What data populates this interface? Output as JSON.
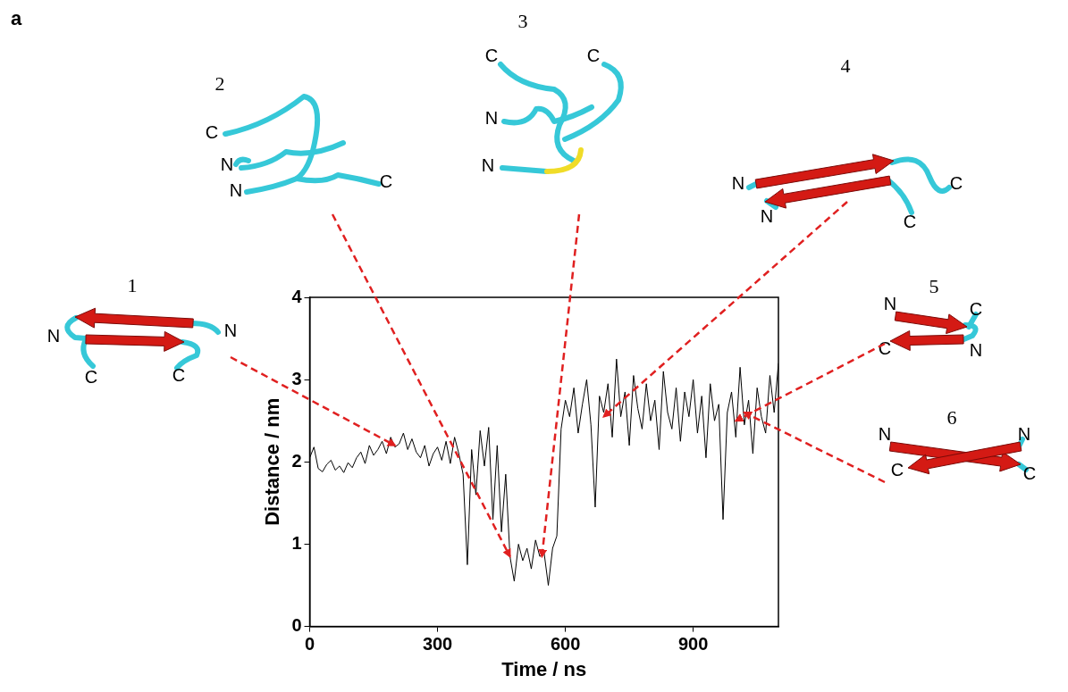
{
  "panel_label": "a",
  "chart_data": {
    "type": "line",
    "x_label": "Time / ns",
    "y_label": "Distance / nm",
    "x": [
      0,
      10,
      20,
      30,
      40,
      50,
      60,
      70,
      80,
      90,
      100,
      110,
      120,
      130,
      140,
      150,
      160,
      170,
      180,
      190,
      200,
      210,
      220,
      230,
      240,
      250,
      260,
      270,
      280,
      290,
      300,
      310,
      320,
      330,
      340,
      350,
      360,
      370,
      380,
      390,
      400,
      410,
      420,
      430,
      440,
      450,
      460,
      470,
      480,
      490,
      500,
      510,
      520,
      530,
      540,
      550,
      560,
      570,
      580,
      590,
      600,
      610,
      620,
      630,
      640,
      650,
      660,
      670,
      680,
      690,
      700,
      710,
      720,
      730,
      740,
      750,
      760,
      770,
      780,
      790,
      800,
      810,
      820,
      830,
      840,
      850,
      860,
      870,
      880,
      890,
      900,
      910,
      920,
      930,
      940,
      950,
      960,
      970,
      980,
      990,
      1000,
      1010,
      1020,
      1030,
      1040,
      1050,
      1060,
      1070,
      1080,
      1090,
      1100
    ],
    "values": [
      2.05,
      2.18,
      1.92,
      1.88,
      1.97,
      2.02,
      1.9,
      1.95,
      1.87,
      1.99,
      1.93,
      2.05,
      2.12,
      1.98,
      2.2,
      2.08,
      2.15,
      2.25,
      2.1,
      2.3,
      2.18,
      2.22,
      2.35,
      2.15,
      2.28,
      2.12,
      2.05,
      2.2,
      1.95,
      2.1,
      2.18,
      2.02,
      2.25,
      1.98,
      2.3,
      2.1,
      1.85,
      0.75,
      2.15,
      1.6,
      2.38,
      1.95,
      2.42,
      1.3,
      2.2,
      1.15,
      1.85,
      0.85,
      0.55,
      1.0,
      0.8,
      0.95,
      0.7,
      1.05,
      0.85,
      0.9,
      0.5,
      0.95,
      1.1,
      2.4,
      2.75,
      2.55,
      2.9,
      2.35,
      2.7,
      3.0,
      2.45,
      1.45,
      2.8,
      2.6,
      2.95,
      2.3,
      3.25,
      2.55,
      2.85,
      2.2,
      3.05,
      2.65,
      2.4,
      2.95,
      2.5,
      2.75,
      2.15,
      3.1,
      2.6,
      2.4,
      2.9,
      2.25,
      2.85,
      2.55,
      3.0,
      2.35,
      2.8,
      2.05,
      2.95,
      2.5,
      2.7,
      1.3,
      2.6,
      2.85,
      2.3,
      3.15,
      2.45,
      2.75,
      2.1,
      2.9,
      2.55,
      2.35,
      3.05,
      2.6,
      3.2
    ],
    "color": "#000000",
    "xlim": [
      0,
      1100
    ],
    "xticks": [
      0,
      300,
      600,
      900
    ],
    "ylim": [
      0,
      4
    ],
    "yticks": [
      0,
      1,
      2,
      3,
      4
    ],
    "grid": false
  },
  "structures": [
    {
      "label": "1",
      "termini": [
        "N",
        "N",
        "C",
        "C"
      ],
      "points_to": {
        "x": 200,
        "y": 2.2
      }
    },
    {
      "label": "2",
      "termini": [
        "C",
        "N",
        "N",
        "C"
      ],
      "points_to": {
        "x": 470,
        "y": 0.85
      }
    },
    {
      "label": "3",
      "termini": [
        "C",
        "C",
        "N",
        "N"
      ],
      "points_to": {
        "x": 545,
        "y": 0.85
      }
    },
    {
      "label": "4",
      "termini": [
        "N",
        "C",
        "N",
        "C"
      ],
      "points_to": {
        "x": 690,
        "y": 2.55
      }
    },
    {
      "label": "5",
      "termini": [
        "N",
        "C",
        "N",
        "C"
      ],
      "points_to": {
        "x": 1000,
        "y": 2.5
      }
    },
    {
      "label": "6",
      "termini": [
        "N",
        "N",
        "C",
        "C"
      ],
      "points_to": {
        "x": 1020,
        "y": 2.6
      }
    }
  ]
}
